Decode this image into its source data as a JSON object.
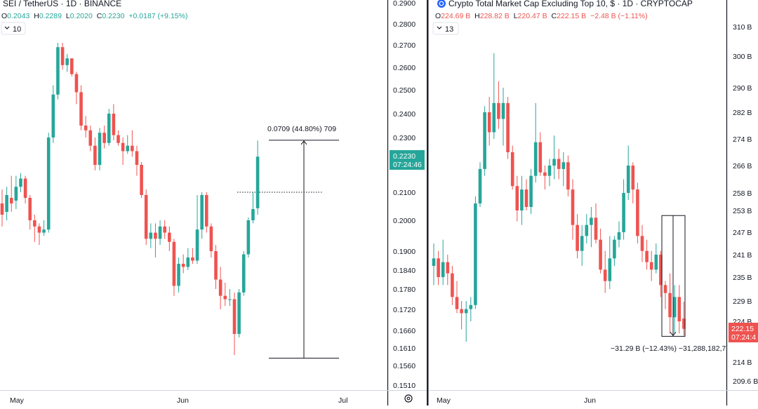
{
  "colors": {
    "up": "#26a69a",
    "down": "#ef5350",
    "axis_text": "#131722",
    "legend_muted": "#787b86"
  },
  "left_panel": {
    "symbol": "SEI / TetherUS · 1D · BINANCE",
    "ohlc": {
      "o_label": "O",
      "o": "0.2043",
      "h_label": "H",
      "h": "0.2289",
      "l_label": "L",
      "l": "0.2020",
      "c_label": "C",
      "c": "0.2230",
      "change": "+0.0187 (+9.15%)"
    },
    "indicators_count": "10",
    "price_axis_ticks": [
      "0.2900",
      "0.2800",
      "0.2700",
      "0.2600",
      "0.2500",
      "0.2400",
      "0.2300",
      "0.2100",
      "0.2000",
      "0.1900",
      "0.1840",
      "0.1780",
      "0.1720",
      "0.1660",
      "0.1610",
      "0.1560",
      "0.1510"
    ],
    "price_label": {
      "value": "0.2230",
      "countdown": "07:24:46"
    },
    "time_axis": [
      "May",
      "Jun",
      "Jul"
    ],
    "measure_label": "0.0709 (44.80%) 709",
    "settings_icon": "gear-icon"
  },
  "right_panel": {
    "symbol": "Crypto Total Market Cap Excluding Top 10, $ · 1D · CRYPTOCAP",
    "ohlc": {
      "o_label": "O",
      "o": "224.69 B",
      "h_label": "H",
      "h": "228.82 B",
      "l_label": "L",
      "l": "220.47 B",
      "c_label": "C",
      "c": "222.15 B",
      "change": "−2.48 B (−1.11%)"
    },
    "indicators_count": "13",
    "price_axis_ticks": [
      "310 B",
      "300 B",
      "290 B",
      "282 B",
      "274 B",
      "266 B",
      "258 B",
      "253 B",
      "247 B",
      "241 B",
      "235 B",
      "229 B",
      "224 B",
      "214 B",
      "209.6 B"
    ],
    "price_label": {
      "value": "222.15",
      "countdown": "07:24:4"
    },
    "time_axis": [
      "May",
      "Jun"
    ],
    "measure_label": "−31.29 B (−12.43%) −31,288,182,7"
  },
  "chart_data": [
    {
      "type": "candlestick",
      "title": "SEI / TetherUS · 1D · BINANCE",
      "x_axis_labels": [
        "May",
        "Jun",
        "Jul"
      ],
      "candles": [
        {
          "o": 0.206,
          "h": 0.211,
          "l": 0.198,
          "c": 0.202
        },
        {
          "o": 0.203,
          "h": 0.212,
          "l": 0.2,
          "c": 0.209
        },
        {
          "o": 0.208,
          "h": 0.216,
          "l": 0.203,
          "c": 0.206
        },
        {
          "o": 0.207,
          "h": 0.216,
          "l": 0.204,
          "c": 0.212
        },
        {
          "o": 0.212,
          "h": 0.217,
          "l": 0.21,
          "c": 0.215
        },
        {
          "o": 0.215,
          "h": 0.216,
          "l": 0.206,
          "c": 0.208
        },
        {
          "o": 0.208,
          "h": 0.209,
          "l": 0.197,
          "c": 0.2
        },
        {
          "o": 0.2,
          "h": 0.202,
          "l": 0.193,
          "c": 0.198
        },
        {
          "o": 0.198,
          "h": 0.199,
          "l": 0.192,
          "c": 0.196
        },
        {
          "o": 0.196,
          "h": 0.2,
          "l": 0.195,
          "c": 0.197
        },
        {
          "o": 0.197,
          "h": 0.232,
          "l": 0.196,
          "c": 0.23
        },
        {
          "o": 0.23,
          "h": 0.252,
          "l": 0.228,
          "c": 0.248
        },
        {
          "o": 0.248,
          "h": 0.271,
          "l": 0.246,
          "c": 0.269
        },
        {
          "o": 0.269,
          "h": 0.271,
          "l": 0.259,
          "c": 0.261
        },
        {
          "o": 0.261,
          "h": 0.266,
          "l": 0.258,
          "c": 0.264
        },
        {
          "o": 0.264,
          "h": 0.264,
          "l": 0.256,
          "c": 0.257
        },
        {
          "o": 0.257,
          "h": 0.258,
          "l": 0.244,
          "c": 0.249
        },
        {
          "o": 0.249,
          "h": 0.252,
          "l": 0.233,
          "c": 0.235
        },
        {
          "o": 0.235,
          "h": 0.239,
          "l": 0.23,
          "c": 0.233
        },
        {
          "o": 0.233,
          "h": 0.235,
          "l": 0.225,
          "c": 0.227
        },
        {
          "o": 0.227,
          "h": 0.23,
          "l": 0.218,
          "c": 0.22
        },
        {
          "o": 0.22,
          "h": 0.234,
          "l": 0.218,
          "c": 0.232
        },
        {
          "o": 0.232,
          "h": 0.235,
          "l": 0.226,
          "c": 0.228
        },
        {
          "o": 0.228,
          "h": 0.242,
          "l": 0.227,
          "c": 0.24
        },
        {
          "o": 0.24,
          "h": 0.244,
          "l": 0.229,
          "c": 0.231
        },
        {
          "o": 0.231,
          "h": 0.233,
          "l": 0.227,
          "c": 0.228
        },
        {
          "o": 0.228,
          "h": 0.23,
          "l": 0.22,
          "c": 0.225
        },
        {
          "o": 0.225,
          "h": 0.231,
          "l": 0.224,
          "c": 0.227
        },
        {
          "o": 0.227,
          "h": 0.233,
          "l": 0.223,
          "c": 0.225
        },
        {
          "o": 0.225,
          "h": 0.227,
          "l": 0.216,
          "c": 0.22
        },
        {
          "o": 0.22,
          "h": 0.221,
          "l": 0.208,
          "c": 0.209
        },
        {
          "o": 0.209,
          "h": 0.211,
          "l": 0.192,
          "c": 0.194
        },
        {
          "o": 0.194,
          "h": 0.199,
          "l": 0.191,
          "c": 0.196
        },
        {
          "o": 0.196,
          "h": 0.199,
          "l": 0.188,
          "c": 0.194
        },
        {
          "o": 0.194,
          "h": 0.2,
          "l": 0.192,
          "c": 0.198
        },
        {
          "o": 0.198,
          "h": 0.2,
          "l": 0.194,
          "c": 0.196
        },
        {
          "o": 0.196,
          "h": 0.198,
          "l": 0.19,
          "c": 0.193
        },
        {
          "o": 0.193,
          "h": 0.194,
          "l": 0.176,
          "c": 0.179
        },
        {
          "o": 0.179,
          "h": 0.188,
          "l": 0.177,
          "c": 0.186
        },
        {
          "o": 0.186,
          "h": 0.189,
          "l": 0.183,
          "c": 0.185
        },
        {
          "o": 0.185,
          "h": 0.191,
          "l": 0.184,
          "c": 0.188
        },
        {
          "o": 0.188,
          "h": 0.191,
          "l": 0.186,
          "c": 0.187
        },
        {
          "o": 0.187,
          "h": 0.209,
          "l": 0.186,
          "c": 0.197
        },
        {
          "o": 0.197,
          "h": 0.21,
          "l": 0.194,
          "c": 0.209
        },
        {
          "o": 0.209,
          "h": 0.21,
          "l": 0.196,
          "c": 0.198
        },
        {
          "o": 0.198,
          "h": 0.199,
          "l": 0.188,
          "c": 0.19
        },
        {
          "o": 0.19,
          "h": 0.192,
          "l": 0.178,
          "c": 0.181
        },
        {
          "o": 0.181,
          "h": 0.185,
          "l": 0.172,
          "c": 0.176
        },
        {
          "o": 0.176,
          "h": 0.18,
          "l": 0.173,
          "c": 0.175
        },
        {
          "o": 0.175,
          "h": 0.178,
          "l": 0.173,
          "c": 0.175
        },
        {
          "o": 0.175,
          "h": 0.177,
          "l": 0.159,
          "c": 0.165
        },
        {
          "o": 0.165,
          "h": 0.178,
          "l": 0.164,
          "c": 0.177
        },
        {
          "o": 0.177,
          "h": 0.19,
          "l": 0.176,
          "c": 0.189
        },
        {
          "o": 0.189,
          "h": 0.201,
          "l": 0.188,
          "c": 0.2
        },
        {
          "o": 0.2,
          "h": 0.21,
          "l": 0.199,
          "c": 0.204
        },
        {
          "o": 0.2043,
          "h": 0.2289,
          "l": 0.202,
          "c": 0.223
        }
      ],
      "price_scale": [
        0.151,
        0.29
      ],
      "tick_values": [
        0.29,
        0.28,
        0.27,
        0.26,
        0.25,
        0.24,
        0.23,
        0.21,
        0.2,
        0.19,
        0.184,
        0.178,
        0.172,
        0.166,
        0.161,
        0.156,
        0.151
      ],
      "current_price": 0.223,
      "reference_level": 0.21,
      "measurement": {
        "from": 0.1581,
        "to": 0.229,
        "label": "0.0709 (44.80%) 709"
      }
    },
    {
      "type": "candlestick",
      "title": "Crypto Total Market Cap Excluding Top 10, $ · 1D · CRYPTOCAP",
      "x_axis_labels": [
        "May",
        "Jun"
      ],
      "candles": [
        {
          "o": 238,
          "h": 244,
          "l": 233,
          "c": 240
        },
        {
          "o": 240,
          "h": 242,
          "l": 233,
          "c": 235
        },
        {
          "o": 235,
          "h": 245,
          "l": 233,
          "c": 239
        },
        {
          "o": 239,
          "h": 241,
          "l": 233,
          "c": 236
        },
        {
          "o": 236,
          "h": 238,
          "l": 228,
          "c": 230
        },
        {
          "o": 230,
          "h": 234,
          "l": 226,
          "c": 227
        },
        {
          "o": 227,
          "h": 229,
          "l": 222,
          "c": 226
        },
        {
          "o": 226,
          "h": 229,
          "l": 219,
          "c": 227
        },
        {
          "o": 227,
          "h": 230,
          "l": 224,
          "c": 228
        },
        {
          "o": 228,
          "h": 257,
          "l": 227,
          "c": 255
        },
        {
          "o": 255,
          "h": 267,
          "l": 254,
          "c": 265
        },
        {
          "o": 265,
          "h": 284,
          "l": 263,
          "c": 282
        },
        {
          "o": 282,
          "h": 287,
          "l": 272,
          "c": 276
        },
        {
          "o": 276,
          "h": 301,
          "l": 274,
          "c": 285
        },
        {
          "o": 285,
          "h": 292,
          "l": 277,
          "c": 280
        },
        {
          "o": 280,
          "h": 290,
          "l": 272,
          "c": 285
        },
        {
          "o": 285,
          "h": 287,
          "l": 268,
          "c": 270
        },
        {
          "o": 270,
          "h": 272,
          "l": 259,
          "c": 260
        },
        {
          "o": 260,
          "h": 263,
          "l": 250,
          "c": 253
        },
        {
          "o": 253,
          "h": 263,
          "l": 249,
          "c": 259
        },
        {
          "o": 259,
          "h": 262,
          "l": 253,
          "c": 254
        },
        {
          "o": 254,
          "h": 265,
          "l": 252,
          "c": 263
        },
        {
          "o": 263,
          "h": 285,
          "l": 261,
          "c": 273
        },
        {
          "o": 273,
          "h": 276,
          "l": 263,
          "c": 264
        },
        {
          "o": 264,
          "h": 266,
          "l": 259,
          "c": 263
        },
        {
          "o": 263,
          "h": 268,
          "l": 260,
          "c": 266
        },
        {
          "o": 266,
          "h": 275,
          "l": 262,
          "c": 268
        },
        {
          "o": 268,
          "h": 271,
          "l": 262,
          "c": 265
        },
        {
          "o": 265,
          "h": 270,
          "l": 260,
          "c": 267
        },
        {
          "o": 267,
          "h": 269,
          "l": 257,
          "c": 259
        },
        {
          "o": 259,
          "h": 262,
          "l": 245,
          "c": 249
        },
        {
          "o": 249,
          "h": 252,
          "l": 240,
          "c": 242
        },
        {
          "o": 242,
          "h": 249,
          "l": 238,
          "c": 246
        },
        {
          "o": 246,
          "h": 252,
          "l": 244,
          "c": 249
        },
        {
          "o": 249,
          "h": 254,
          "l": 243,
          "c": 251
        },
        {
          "o": 251,
          "h": 255,
          "l": 244,
          "c": 245
        },
        {
          "o": 245,
          "h": 248,
          "l": 236,
          "c": 237
        },
        {
          "o": 237,
          "h": 242,
          "l": 231,
          "c": 234
        },
        {
          "o": 234,
          "h": 246,
          "l": 232,
          "c": 240
        },
        {
          "o": 240,
          "h": 246,
          "l": 238,
          "c": 245
        },
        {
          "o": 245,
          "h": 250,
          "l": 243,
          "c": 247
        },
        {
          "o": 247,
          "h": 262,
          "l": 245,
          "c": 258
        },
        {
          "o": 258,
          "h": 272,
          "l": 256,
          "c": 266
        },
        {
          "o": 266,
          "h": 267,
          "l": 255,
          "c": 259
        },
        {
          "o": 259,
          "h": 261,
          "l": 244,
          "c": 246
        },
        {
          "o": 246,
          "h": 249,
          "l": 239,
          "c": 242
        },
        {
          "o": 242,
          "h": 245,
          "l": 237,
          "c": 239
        },
        {
          "o": 239,
          "h": 242,
          "l": 234,
          "c": 237
        },
        {
          "o": 237,
          "h": 244,
          "l": 236,
          "c": 241
        },
        {
          "o": 241,
          "h": 242,
          "l": 230,
          "c": 233
        },
        {
          "o": 233,
          "h": 234,
          "l": 227,
          "c": 231
        },
        {
          "o": 231,
          "h": 236,
          "l": 221,
          "c": 225
        },
        {
          "o": 225,
          "h": 233,
          "l": 221,
          "c": 230
        },
        {
          "o": 230,
          "h": 233,
          "l": 221,
          "c": 224
        },
        {
          "o": 224.69,
          "h": 228.82,
          "l": 220.47,
          "c": 222.15
        }
      ],
      "price_scale": [
        209.6,
        310
      ],
      "current_price": 222.15,
      "measurement": {
        "from": 251.6,
        "to": 220.31,
        "label": "−31.29 B (−12.43%) −31,288,182,7"
      }
    }
  ]
}
